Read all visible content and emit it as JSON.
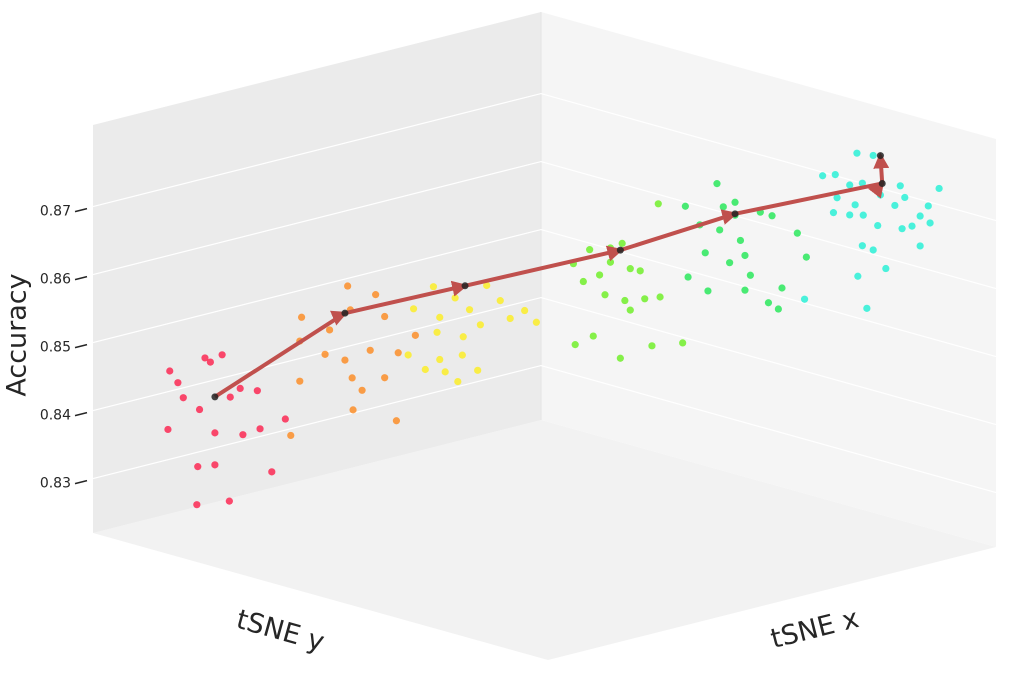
{
  "chart_data": {
    "type": "scatter3d",
    "xlabel": "tSNE x",
    "ylabel": "tSNE y",
    "zlabel": "Accuracy",
    "xlim": [
      0,
      1
    ],
    "ylim": [
      0,
      1
    ],
    "zlim": [
      0.822,
      0.882
    ],
    "zticks": [
      0.83,
      0.84,
      0.85,
      0.86,
      0.87
    ],
    "grid": true,
    "series": [
      {
        "color": "#ff0033",
        "x": [
          0.085,
          0.094,
          0.124,
          0.13,
          0.143,
          0.1,
          0.118,
          0.152,
          0.163,
          0.182,
          0.083,
          0.135,
          0.166,
          0.185,
          0.116,
          0.135,
          0.198,
          0.115,
          0.151,
          0.213
        ],
        "y": [
          0.085,
          0.094,
          0.124,
          0.13,
          0.143,
          0.1,
          0.118,
          0.152,
          0.163,
          0.182,
          0.083,
          0.135,
          0.166,
          0.185,
          0.116,
          0.135,
          0.198,
          0.115,
          0.151,
          0.213
        ],
        "z": [
          0.846,
          0.8443,
          0.848,
          0.8474,
          0.8485,
          0.8421,
          0.8404,
          0.8423,
          0.8436,
          0.8433,
          0.8374,
          0.837,
          0.8368,
          0.8377,
          0.832,
          0.8323,
          0.8314,
          0.8264,
          0.827,
          0.8392
        ]
      },
      {
        "color": "#ff7a00",
        "x": [
          0.231,
          0.282,
          0.313,
          0.229,
          0.262,
          0.285,
          0.323,
          0.257,
          0.279,
          0.307,
          0.229,
          0.287,
          0.338,
          0.298,
          0.288,
          0.336,
          0.219,
          0.323,
          0.357
        ],
        "y": [
          0.231,
          0.282,
          0.313,
          0.229,
          0.262,
          0.285,
          0.323,
          0.257,
          0.279,
          0.307,
          0.229,
          0.287,
          0.338,
          0.298,
          0.288,
          0.336,
          0.219,
          0.323,
          0.357
        ],
        "z": [
          0.8542,
          0.8589,
          0.8577,
          0.8507,
          0.8524,
          0.8554,
          0.8545,
          0.8488,
          0.848,
          0.8495,
          0.8448,
          0.8454,
          0.8492,
          0.8436,
          0.8407,
          0.8392,
          0.8368,
          0.8455,
          0.8518
        ]
      },
      {
        "color": "#ffee00",
        "x": [
          0.377,
          0.401,
          0.436,
          0.451,
          0.355,
          0.384,
          0.417,
          0.462,
          0.478,
          0.381,
          0.41,
          0.429,
          0.349,
          0.384,
          0.409,
          0.426,
          0.368,
          0.404,
          0.491,
          0.39
        ],
        "y": [
          0.377,
          0.401,
          0.436,
          0.451,
          0.355,
          0.384,
          0.417,
          0.462,
          0.478,
          0.381,
          0.41,
          0.429,
          0.349,
          0.384,
          0.409,
          0.426,
          0.368,
          0.404,
          0.491,
          0.39
        ],
        "z": [
          0.859,
          0.8574,
          0.8593,
          0.8571,
          0.8557,
          0.8545,
          0.8557,
          0.8545,
          0.8557,
          0.8523,
          0.8517,
          0.8535,
          0.8489,
          0.8483,
          0.849,
          0.8468,
          0.8468,
          0.8451,
          0.854,
          0.8465
        ]
      },
      {
        "color": "#55ee00",
        "x": [
          0.532,
          0.55,
          0.573,
          0.586,
          0.543,
          0.561,
          0.595,
          0.626,
          0.606,
          0.567,
          0.589,
          0.611,
          0.628,
          0.534,
          0.554,
          0.584,
          0.619,
          0.653,
          0.595,
          0.573
        ],
        "y": [
          0.532,
          0.55,
          0.573,
          0.586,
          0.543,
          0.561,
          0.595,
          0.626,
          0.606,
          0.567,
          0.589,
          0.611,
          0.628,
          0.534,
          0.554,
          0.584,
          0.619,
          0.653,
          0.595,
          0.573
        ],
        "z": [
          0.8627,
          0.8648,
          0.8651,
          0.8658,
          0.8601,
          0.8611,
          0.8621,
          0.8717,
          0.8618,
          0.8582,
          0.8574,
          0.8577,
          0.858,
          0.8508,
          0.8521,
          0.8489,
          0.8508,
          0.8513,
          0.856,
          0.863
        ]
      },
      {
        "color": "#00e63c",
        "x": [
          0.691,
          0.698,
          0.711,
          0.656,
          0.672,
          0.694,
          0.717,
          0.739,
          0.752,
          0.78,
          0.678,
          0.705,
          0.722,
          0.659,
          0.681,
          0.728,
          0.722,
          0.763,
          0.748,
          0.759,
          0.79,
          0.711
        ],
        "y": [
          0.691,
          0.698,
          0.711,
          0.656,
          0.672,
          0.694,
          0.717,
          0.739,
          0.752,
          0.78,
          0.678,
          0.705,
          0.722,
          0.659,
          0.681,
          0.728,
          0.722,
          0.763,
          0.748,
          0.759,
          0.79,
          0.711
        ],
        "z": [
          0.8748,
          0.8714,
          0.8721,
          0.8714,
          0.8687,
          0.868,
          0.8665,
          0.8707,
          0.8702,
          0.8677,
          0.8646,
          0.8632,
          0.8643,
          0.861,
          0.859,
          0.8614,
          0.8592,
          0.8596,
          0.8574,
          0.8565,
          0.8642,
          0.8702
        ]
      },
      {
        "color": "#00f0d0",
        "x": [
          0.808,
          0.822,
          0.846,
          0.864,
          0.838,
          0.852,
          0.894,
          0.899,
          0.937,
          0.824,
          0.844,
          0.872,
          0.888,
          0.916,
          0.925,
          0.82,
          0.838,
          0.853,
          0.869,
          0.896,
          0.907,
          0.927,
          0.852,
          0.864,
          0.878,
          0.847,
          0.857,
          0.916,
          0.788
        ],
        "y": [
          0.808,
          0.822,
          0.846,
          0.864,
          0.838,
          0.852,
          0.894,
          0.899,
          0.937,
          0.824,
          0.844,
          0.872,
          0.888,
          0.916,
          0.925,
          0.82,
          0.838,
          0.853,
          0.869,
          0.896,
          0.907,
          0.927,
          0.852,
          0.864,
          0.878,
          0.847,
          0.857,
          0.916,
          0.788
        ],
        "z": [
          0.8762,
          0.8764,
          0.8796,
          0.8793,
          0.8749,
          0.8752,
          0.8749,
          0.8732,
          0.8746,
          0.873,
          0.872,
          0.8735,
          0.872,
          0.8705,
          0.872,
          0.8708,
          0.8705,
          0.8705,
          0.869,
          0.8686,
          0.869,
          0.8695,
          0.866,
          0.8654,
          0.8627,
          0.8615,
          0.8568,
          0.8661,
          0.858
        ]
      }
    ],
    "path": {
      "color": "#c0504d",
      "marker_color": "#222222",
      "x": [
        0.135,
        0.279,
        0.412,
        0.584,
        0.711,
        0.874,
        0.872
      ],
      "y": [
        0.135,
        0.279,
        0.412,
        0.584,
        0.711,
        0.874,
        0.872
      ],
      "z": [
        0.8423,
        0.8549,
        0.8592,
        0.8648,
        0.8704,
        0.8752,
        0.8793
      ]
    }
  }
}
